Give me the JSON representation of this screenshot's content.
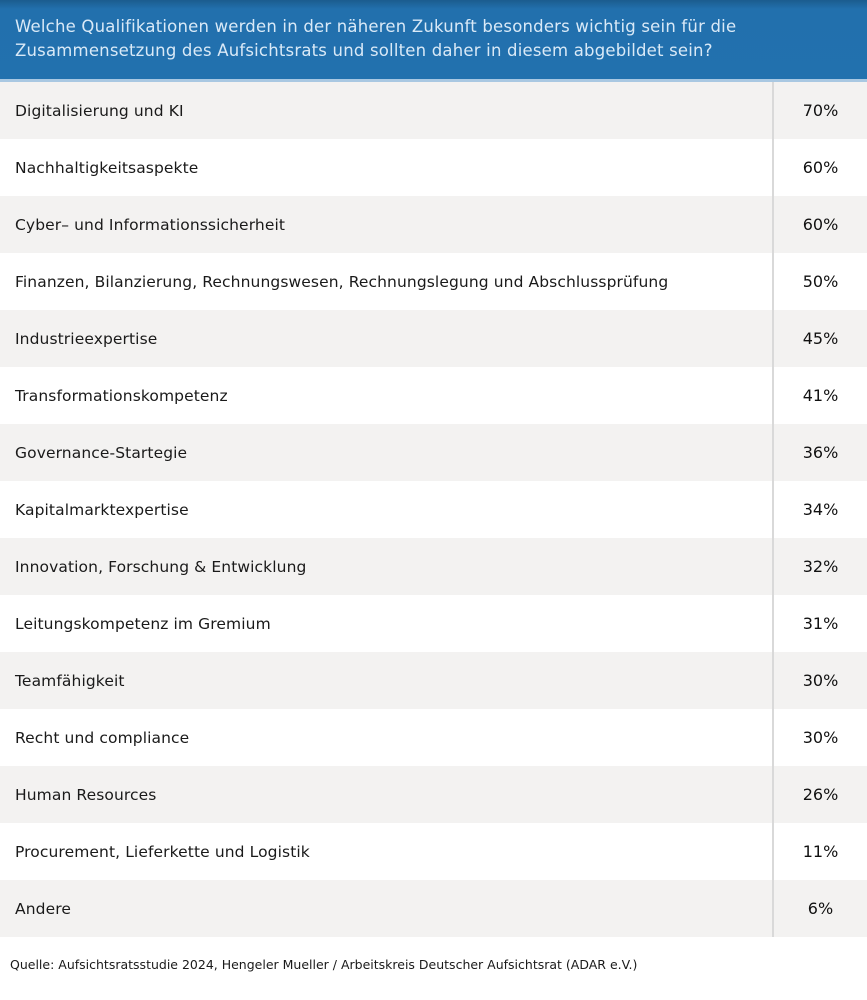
{
  "header": {
    "question": "Welche Qualifikationen werden in der näheren Zukunft besonders wichtig sein für die Zusammensetzung des Aufsichtsrats und sollten daher in diesem abgebildet sein?"
  },
  "rows": [
    {
      "label": "Digitalisierung und KI",
      "value": "70%"
    },
    {
      "label": "Nachhaltigkeitsaspekte",
      "value": "60%"
    },
    {
      "label": "Cyber– und Informationssicherheit",
      "value": "60%"
    },
    {
      "label": "Finanzen, Bilanzierung, Rechnungswesen, Rechnungslegung und Abschlussprüfung",
      "value": "50%"
    },
    {
      "label": "Industrieexpertise",
      "value": "45%"
    },
    {
      "label": "Transformationskompetenz",
      "value": "41%"
    },
    {
      "label": "Governance-Startegie",
      "value": "36%"
    },
    {
      "label": "Kapitalmarktexpertise",
      "value": "34%"
    },
    {
      "label": "Innovation, Forschung & Entwicklung",
      "value": "32%"
    },
    {
      "label": "Leitungskompetenz im Gremium",
      "value": "31%"
    },
    {
      "label": "Teamfähigkeit",
      "value": "30%"
    },
    {
      "label": "Recht und compliance",
      "value": "30%"
    },
    {
      "label": "Human Resources",
      "value": "26%"
    },
    {
      "label": "Procurement, Lieferkette und Logistik",
      "value": "11%"
    },
    {
      "label": "Andere",
      "value": "6%"
    }
  ],
  "footer": {
    "source": "Quelle: Aufsichtsratsstudie 2024, Hengeler Mueller / Arbeitskreis Deutscher Aufsichtsrat (ADAR e.V.)"
  },
  "colors": {
    "header_background": "#2271ae",
    "header_text": "#d9e9f7",
    "header_bottom_rule": "#a9c8e2",
    "row_alt_background": "#f3f2f1",
    "row_background": "#ffffff",
    "divider": "#d9d9d9",
    "body_text": "#1a1a1a"
  },
  "chart_data": {
    "type": "table",
    "title": "Welche Qualifikationen werden in der näheren Zukunft besonders wichtig sein für die Zusammensetzung des Aufsichtsrats und sollten daher in diesem abgebildet sein?",
    "categories": [
      "Digitalisierung und KI",
      "Nachhaltigkeitsaspekte",
      "Cyber– und Informationssicherheit",
      "Finanzen, Bilanzierung, Rechnungswesen, Rechnungslegung und Abschlussprüfung",
      "Industrieexpertise",
      "Transformationskompetenz",
      "Governance-Startegie",
      "Kapitalmarktexpertise",
      "Innovation, Forschung & Entwicklung",
      "Leitungskompetenz im Gremium",
      "Teamfähigkeit",
      "Recht und compliance",
      "Human Resources",
      "Procurement, Lieferkette und Logistik",
      "Andere"
    ],
    "values": [
      70,
      60,
      60,
      50,
      45,
      41,
      36,
      34,
      32,
      31,
      30,
      30,
      26,
      11,
      6
    ],
    "value_unit": "%",
    "source": "Quelle: Aufsichtsratsstudie 2024, Hengeler Mueller / Arbeitskreis Deutscher Aufsichtsrat (ADAR e.V.)"
  }
}
